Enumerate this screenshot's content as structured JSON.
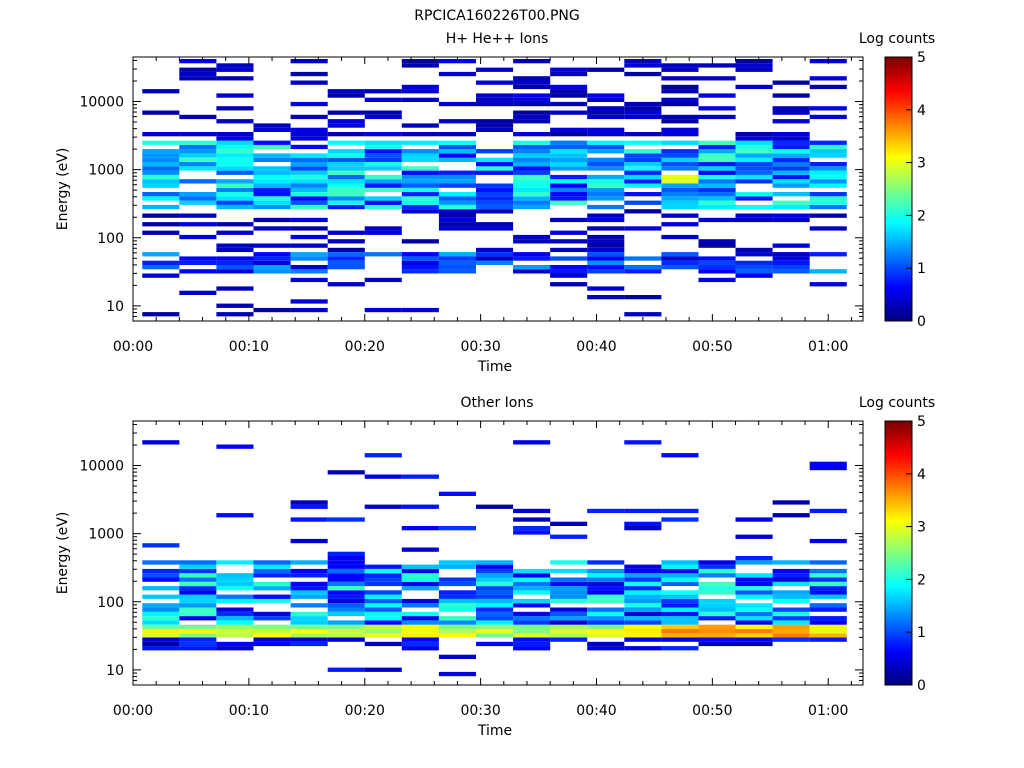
{
  "figure_title": "RPCICA160226T00.PNG",
  "chart_data": [
    {
      "type": "heatmap",
      "title": "H+ He++ Ions",
      "xlabel": "Time",
      "ylabel": "Energy (eV)",
      "colorbar_label": "Log counts",
      "x_ticks": [
        "00:00",
        "00:10",
        "00:20",
        "00:30",
        "00:40",
        "00:50",
        "01:00"
      ],
      "y_ticks": [
        "10",
        "100",
        "1000",
        "10000"
      ],
      "y_scale": "log",
      "ylim": [
        6,
        45000
      ],
      "xlim_min": [
        0,
        63
      ],
      "colorbar_range": [
        0,
        5
      ],
      "colorbar_ticks": [
        "0",
        "1",
        "2",
        "3",
        "4",
        "5"
      ],
      "time_bins_min": [
        2.4,
        5.6,
        8.8,
        12.0,
        15.2,
        18.4,
        21.6,
        24.8,
        28.0,
        31.2,
        34.4,
        37.6,
        40.8,
        44.0,
        47.2,
        50.4,
        53.6,
        56.8,
        60.0
      ],
      "colormap": [
        "#00007f",
        "#0000ff",
        "#007fff",
        "#00ffff",
        "#7fff7f",
        "#ffff00",
        "#ff7f00",
        "#ff0000",
        "#7f0000"
      ],
      "data_row_count": 34
    },
    {
      "type": "heatmap",
      "title": "Other Ions",
      "xlabel": "Time",
      "ylabel": "Energy (eV)",
      "colorbar_label": "Log counts",
      "x_ticks": [
        "00:00",
        "00:10",
        "00:20",
        "00:30",
        "00:40",
        "00:50",
        "01:00"
      ],
      "y_ticks": [
        "10",
        "100",
        "1000",
        "10000"
      ],
      "y_scale": "log",
      "ylim": [
        6,
        45000
      ],
      "xlim_min": [
        0,
        63
      ],
      "colorbar_range": [
        0,
        5
      ],
      "colorbar_ticks": [
        "0",
        "1",
        "2",
        "3",
        "4",
        "5"
      ],
      "time_bins_min": [
        2.4,
        5.6,
        8.8,
        12.0,
        15.2,
        18.4,
        21.6,
        24.8,
        28.0,
        31.2,
        34.4,
        37.6,
        40.8,
        44.0,
        47.2,
        50.4,
        53.6,
        56.8,
        60.0
      ],
      "colormap": [
        "#00007f",
        "#0000ff",
        "#007fff",
        "#00ffff",
        "#7fff7f",
        "#ffff00",
        "#ff7f00",
        "#ff0000",
        "#7f0000"
      ],
      "data_row_count": 28
    }
  ]
}
